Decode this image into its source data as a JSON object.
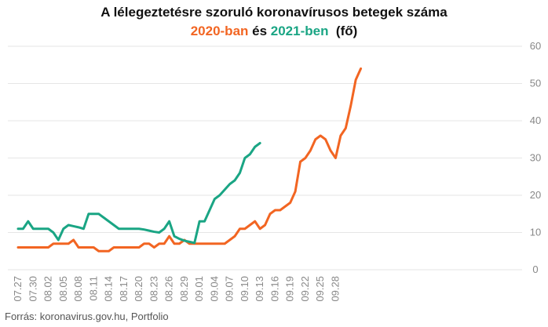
{
  "title": {
    "line1": "A lélegeztetésre szoruló koronavírusos betegek száma",
    "part_2020": "2020-ban",
    "part_and": " és ",
    "part_2021": "2021-ben",
    "part_unit": "  (fő)"
  },
  "source": "Forrás: koronavirus.gov.hu, Portfolio",
  "colors": {
    "series_2020": "#f26522",
    "series_2021": "#1aa584",
    "grid": "#e6e6e6",
    "tick": "#888888"
  },
  "chart_data": {
    "type": "line",
    "title": "A lélegeztetésre szoruló koronavírusos betegek száma 2020-ban és 2021-ben (fő)",
    "xlabel": "",
    "ylabel": "",
    "ylim": [
      0,
      60
    ],
    "yticks": [
      0,
      10,
      20,
      30,
      40,
      50,
      60
    ],
    "y_axis_side": "right",
    "grid": "horizontal",
    "x_tick_labels": [
      "07.27",
      "07.30",
      "08.02",
      "08.05",
      "08.08",
      "08.11",
      "08.14",
      "08.17",
      "08.20",
      "08.23",
      "08.26",
      "08.29",
      "09.01",
      "09.04",
      "09.07",
      "09.10",
      "09.13",
      "09.16",
      "09.19",
      "09.22",
      "09.25",
      "09.28"
    ],
    "x_start": "07.27",
    "series": [
      {
        "name": "2020-ban",
        "color": "#f26522",
        "values": [
          6,
          6,
          6,
          6,
          6,
          6,
          6,
          7,
          7,
          7,
          7,
          8,
          6,
          6,
          6,
          6,
          5,
          5,
          5,
          6,
          6,
          6,
          6,
          6,
          6,
          7,
          7,
          6,
          7,
          7,
          9,
          7,
          7,
          8,
          7,
          7,
          7,
          7,
          7,
          7,
          7,
          7,
          8,
          9,
          11,
          11,
          12,
          13,
          11,
          12,
          15,
          16,
          16,
          17,
          18,
          21,
          29,
          30,
          32,
          35,
          36,
          35,
          32,
          30,
          36,
          38,
          44,
          51,
          54
        ]
      },
      {
        "name": "2021-ben",
        "color": "#1aa584",
        "values": [
          11,
          11,
          13,
          11,
          11,
          11,
          11,
          10,
          8,
          11,
          12,
          11.7,
          11.4,
          11,
          15,
          15,
          15,
          14,
          13,
          12,
          11,
          11,
          11,
          11,
          11,
          10.8,
          10.5,
          10.2,
          10,
          11,
          13,
          9,
          8.3,
          7.8,
          7.5,
          7.2,
          13,
          13,
          16,
          19,
          20,
          21.5,
          23,
          24,
          26,
          30,
          31,
          33,
          34
        ]
      }
    ]
  }
}
